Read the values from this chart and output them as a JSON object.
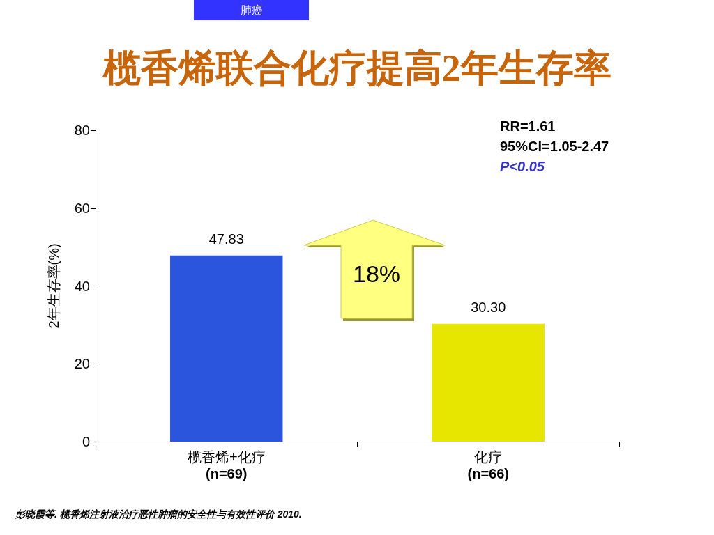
{
  "chart_data": {
    "type": "bar",
    "title": "榄香烯联合化疗提高2年生存率",
    "ylabel": "2年生存率(%)",
    "categories": [
      "榄香烯+化疗\n(n=69)",
      "化疗\n(n=66)"
    ],
    "values": [
      47.83,
      30.3
    ],
    "colors": [
      "#2c55dd",
      "#e6e600"
    ],
    "value_labels": [
      "47.83",
      "30.30"
    ],
    "ylim": [
      0,
      80
    ],
    "yticks": [
      0,
      20,
      40,
      60,
      80
    ],
    "grid": false,
    "annotations": [
      "肺癌",
      "RR=1.61",
      "95%CI=1.05-2.47",
      "P<0.05",
      "18%",
      "彭晓霞等. 榄香烯注射液治疗恶性肿瘤的安全性与有效性评价 2010."
    ]
  }
}
